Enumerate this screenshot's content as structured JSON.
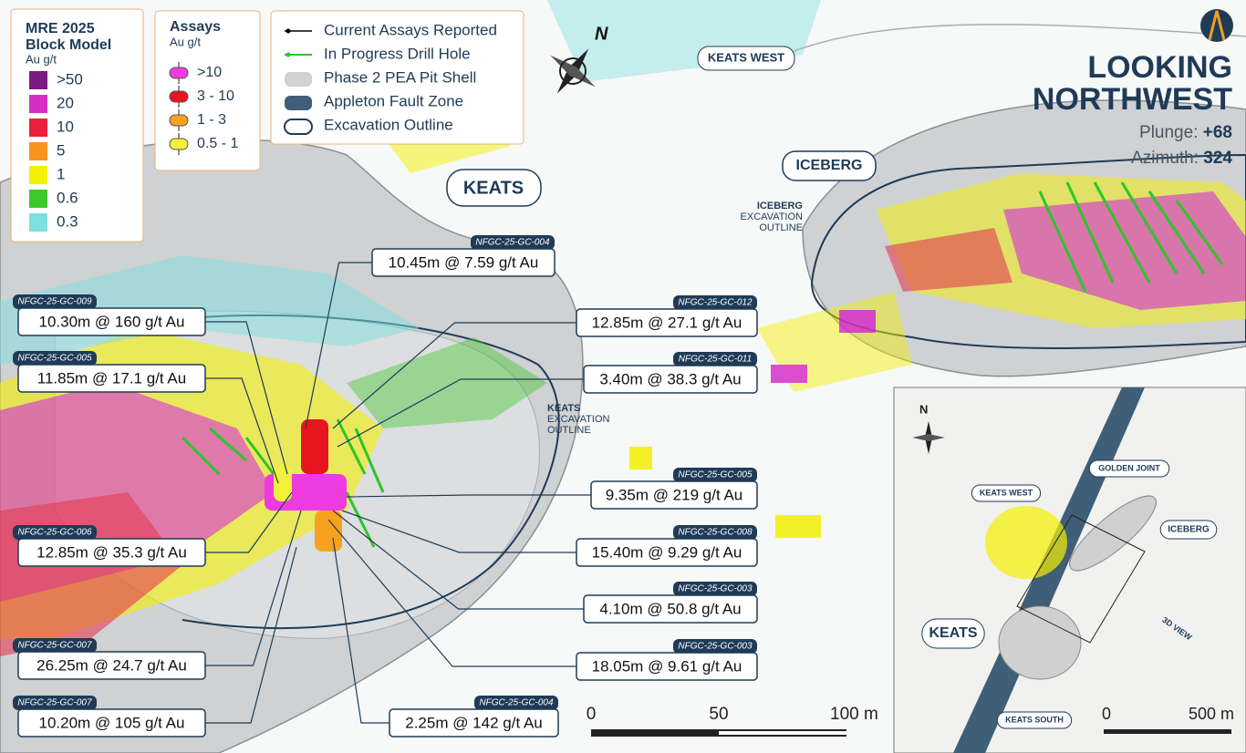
{
  "block_model_legend": {
    "title": "MRE 2025 Block Model",
    "unit": "Au g/t",
    "items": [
      {
        "label": ">50",
        "color": "#7b1a7f"
      },
      {
        "label": "20",
        "color": "#d62fc6"
      },
      {
        "label": "10",
        "color": "#e8203a"
      },
      {
        "label": "5",
        "color": "#f7941d"
      },
      {
        "label": "1",
        "color": "#f3f000"
      },
      {
        "label": "0.6",
        "color": "#3dc82d"
      },
      {
        "label": "0.3",
        "color": "#7fdfe0"
      }
    ]
  },
  "assays_legend": {
    "title": "Assays",
    "unit": "Au g/t",
    "items": [
      {
        "label": ">10",
        "color": "#ee3be0"
      },
      {
        "label": "3 - 10",
        "color": "#e8141e"
      },
      {
        "label": "1 - 3",
        "color": "#f7a21d"
      },
      {
        "label": "0.5 - 1",
        "color": "#f1f03a"
      }
    ]
  },
  "key_legend": {
    "items": [
      {
        "label": "Current Assays Reported"
      },
      {
        "label": "In Progress Drill Hole"
      },
      {
        "label": "Phase 2 PEA Pit Shell"
      },
      {
        "label": "Appleton Fault Zone"
      },
      {
        "label": "Excavation Outline"
      }
    ]
  },
  "view": {
    "title_line1": "LOOKING",
    "title_line2": "NORTHWEST",
    "plunge_label": "Plunge:",
    "plunge_value": "+68",
    "azimuth_label": "Azimuth:",
    "azimuth_value": "324",
    "north": "N"
  },
  "zones": {
    "keats": "KEATS",
    "iceberg": "ICEBERG",
    "keats_west": "KEATS WEST",
    "keats_outline_1": "KEATS",
    "keats_outline_2": "EXCAVATION",
    "keats_outline_3": "OUTLINE",
    "iceberg_outline_1": "ICEBERG",
    "iceberg_outline_2": "EXCAVATION",
    "iceberg_outline_3": "OUTLINE"
  },
  "intercepts": [
    {
      "hole": "NFGC-25-GC-004",
      "text": "10.45m @ 7.59 g/t Au"
    },
    {
      "hole": "NFGC-25-GC-009",
      "text": "10.30m @ 160 g/t Au"
    },
    {
      "hole": "NFGC-25-GC-005",
      "text": "11.85m @ 17.1 g/t Au"
    },
    {
      "hole": "NFGC-25-GC-006",
      "text": "12.85m @ 35.3 g/t Au"
    },
    {
      "hole": "NFGC-25-GC-007",
      "text": "26.25m @ 24.7 g/t Au"
    },
    {
      "hole": "NFGC-25-GC-007",
      "text": "10.20m @ 105 g/t Au"
    },
    {
      "hole": "NFGC-25-GC-012",
      "text": "12.85m @ 27.1 g/t Au"
    },
    {
      "hole": "NFGC-25-GC-011",
      "text": "3.40m @ 38.3 g/t Au"
    },
    {
      "hole": "NFGC-25-GC-005",
      "text": "9.35m @ 219 g/t Au"
    },
    {
      "hole": "NFGC-25-GC-008",
      "text": "15.40m @ 9.29 g/t Au"
    },
    {
      "hole": "NFGC-25-GC-003",
      "text": "4.10m @ 50.8 g/t Au"
    },
    {
      "hole": "NFGC-25-GC-003",
      "text": "18.05m @ 9.61 g/t Au"
    },
    {
      "hole": "NFGC-25-GC-004",
      "text": "2.25m @ 142 g/t Au"
    }
  ],
  "scale_bar": {
    "labels": [
      "0",
      "50",
      "100 m"
    ]
  },
  "inset": {
    "north": "N",
    "labels": [
      "KEATS WEST",
      "GOLDEN JOINT",
      "ICEBERG",
      "KEATS",
      "KEATS SOUTH",
      "3D VIEW"
    ],
    "scale_labels": [
      "0",
      "500 m"
    ]
  }
}
